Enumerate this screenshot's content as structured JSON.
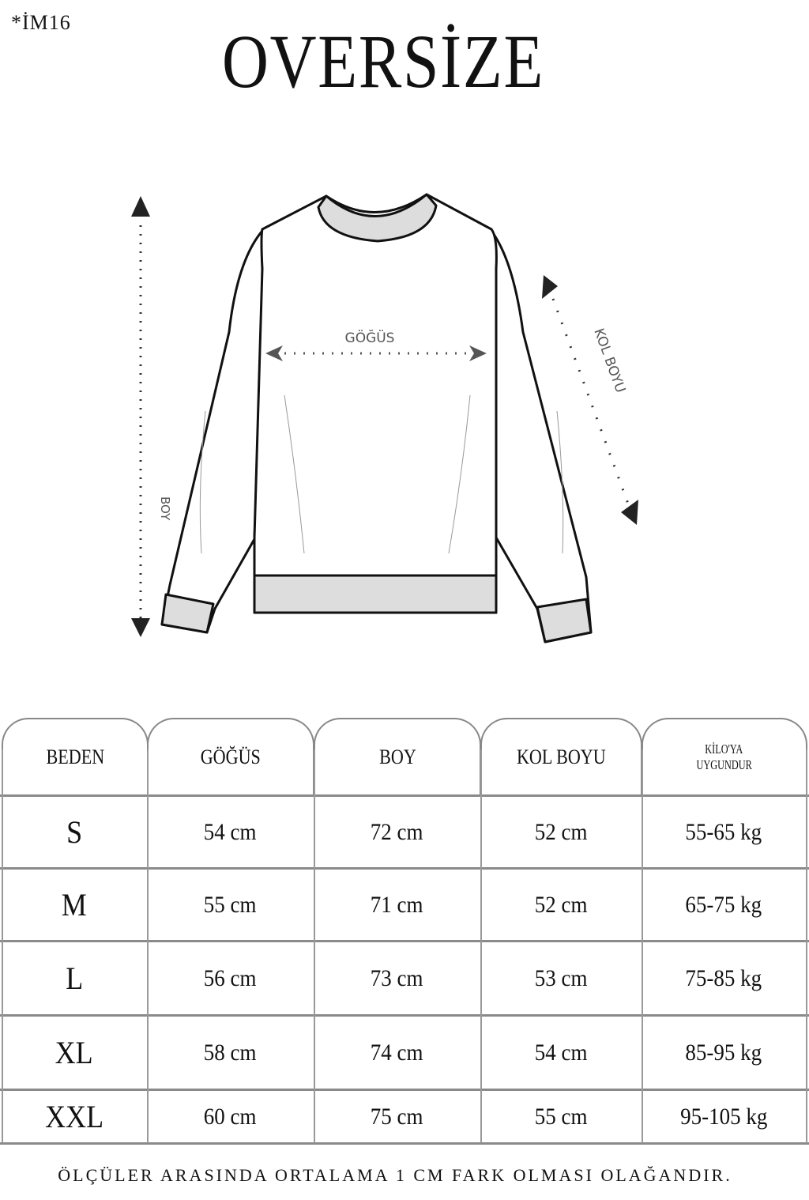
{
  "product_code": "*İM16",
  "title": "OVERSİZE",
  "diagram": {
    "labels": {
      "chest": "GÖĞÜS",
      "length": "BOY",
      "sleeve": "KOL BOYU"
    },
    "icons": [
      "sweatshirt-drawing",
      "arrow-up-icon",
      "arrow-down-icon",
      "arrow-left-icon",
      "arrow-right-icon"
    ]
  },
  "table": {
    "headers": [
      "BEDEN",
      "GÖĞÜS",
      "BOY",
      "KOL BOYU",
      "KİLO'YA UYGUNDUR"
    ],
    "header_lines": {
      "weight_1": "KİLO'YA",
      "weight_2": "UYGUNDUR"
    },
    "rows": [
      [
        "S",
        "54 cm",
        "72 cm",
        "52  cm",
        "55-65 kg"
      ],
      [
        "M",
        "55 cm",
        "71 cm",
        "52 cm",
        "65-75 kg"
      ],
      [
        "L",
        "56 cm",
        "73 cm",
        "53 cm",
        "75-85 kg"
      ],
      [
        "XL",
        "58 cm",
        "74 cm",
        "54 cm",
        "85-95 kg"
      ],
      [
        "XXL",
        "60 cm",
        "75 cm",
        "55 cm",
        "95-105 kg"
      ]
    ]
  },
  "footer_note": "ÖLÇÜLER ARASINDA ORTALAMA 1 CM FARK OLMASI OLAĞANDIR.",
  "colors": {
    "border": "#888888",
    "text": "#111111"
  }
}
